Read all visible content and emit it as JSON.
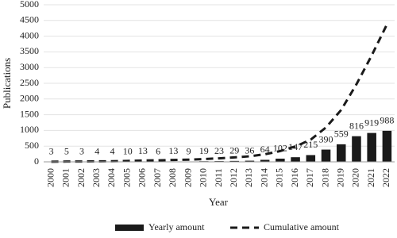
{
  "chart_data": {
    "type": "bar",
    "x_label": "Year",
    "y_label": "Publications",
    "categories": [
      "2000",
      "2001",
      "2002",
      "2003",
      "2004",
      "2005",
      "2006",
      "2007",
      "2008",
      "2009",
      "2010",
      "2011",
      "2012",
      "2013",
      "2014",
      "2015",
      "2016",
      "2017",
      "2018",
      "2019",
      "2020",
      "2021",
      "2022"
    ],
    "series": [
      {
        "name": "Yearly amount",
        "type": "bar",
        "color": "#1a1a1a",
        "values": [
          3,
          5,
          3,
          4,
          4,
          10,
          13,
          6,
          13,
          9,
          19,
          23,
          29,
          36,
          64,
          102,
          147,
          215,
          390,
          559,
          816,
          919,
          988
        ]
      },
      {
        "name": "Cumulative amount",
        "type": "line",
        "dash": true,
        "color": "#1a1a1a",
        "values": [
          3,
          8,
          11,
          15,
          19,
          29,
          42,
          48,
          61,
          70,
          89,
          112,
          141,
          177,
          241,
          343,
          490,
          705,
          1095,
          1654,
          2470,
          3389,
          4377
        ]
      }
    ],
    "ylim": [
      0,
      5000
    ],
    "yticks": [
      0,
      500,
      1000,
      1500,
      2000,
      2500,
      3000,
      3500,
      4000,
      4500,
      5000
    ],
    "grid": true,
    "legend": "bottom"
  }
}
